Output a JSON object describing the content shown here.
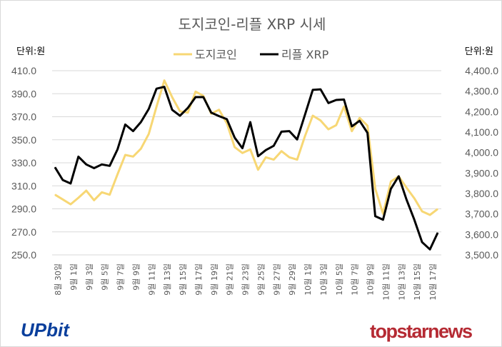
{
  "chart_data": {
    "type": "line",
    "title": "도지코인-리플 XRP 시세",
    "left_unit": "단위:원",
    "right_unit": "단위:원",
    "legend_position": "top",
    "x_label_interval": 2,
    "x_tick_labels": [
      "8월 30일",
      "9월 1일",
      "9월 3일",
      "9월 5일",
      "9월 7일",
      "9월 9일",
      "9월 11일",
      "9월 13일",
      "9월 15일",
      "9월 17일",
      "9월 19일",
      "9월 21일",
      "9월 23일",
      "9월 25일",
      "9월 27일",
      "9월 29일",
      "10월 1일",
      "10월 3일",
      "10월 5일",
      "10월 7일",
      "10월 9일",
      "10월 11일",
      "10월 13일",
      "10월 15일",
      "10월 17일"
    ],
    "y_left": {
      "ylim": [
        250,
        410
      ],
      "ticks": [
        "250.0",
        "270.0",
        "290.0",
        "310.0",
        "330.0",
        "350.0",
        "370.0",
        "390.0",
        "410.0"
      ]
    },
    "y_right": {
      "ylim": [
        3500,
        4400
      ],
      "ticks": [
        "3,500.0",
        "3,600.0",
        "3,700.0",
        "3,800.0",
        "3,900.0",
        "4,000.0",
        "4,100.0",
        "4,200.0",
        "4,300.0",
        "4,400.0"
      ]
    },
    "grid": true,
    "series": [
      {
        "name": "도지코인",
        "axis": "left",
        "color": "#f7d774",
        "values": [
          302.3,
          298.2,
          294,
          299.6,
          305.8,
          297.5,
          304.4,
          302.3,
          319.9,
          336.8,
          335.4,
          342.2,
          355,
          378.8,
          401.5,
          387,
          374.7,
          373.6,
          391.8,
          388.1,
          372.6,
          376.1,
          364.3,
          343.6,
          338.5,
          341.6,
          324,
          334.8,
          332.7,
          340.1,
          334.8,
          332.7,
          353,
          370.9,
          366.8,
          359.1,
          362.7,
          378.8,
          357.5,
          369,
          362.2,
          307.5,
          285.8,
          313.7,
          318.2,
          308.5,
          299.2,
          287.8,
          284.7,
          289.9
        ]
      },
      {
        "name": "리플 XRP",
        "axis": "right",
        "color": "#000000",
        "values": [
          3928,
          3866,
          3849,
          3980,
          3942,
          3924,
          3942,
          3935,
          4015,
          4137,
          4105,
          4149,
          4213,
          4312,
          4321,
          4209,
          4180,
          4218,
          4271,
          4271,
          4195,
          4178,
          4163,
          4073,
          4021,
          4149,
          3982,
          4012,
          4033,
          4102,
          4105,
          4064,
          4184,
          4306,
          4309,
          4242,
          4257,
          4259,
          4128,
          4155,
          4096,
          3689,
          3672,
          3823,
          3884,
          3771,
          3672,
          3562,
          3527,
          3608
        ]
      }
    ]
  },
  "logos": {
    "left": "UPbit",
    "right": "topstarnews"
  }
}
